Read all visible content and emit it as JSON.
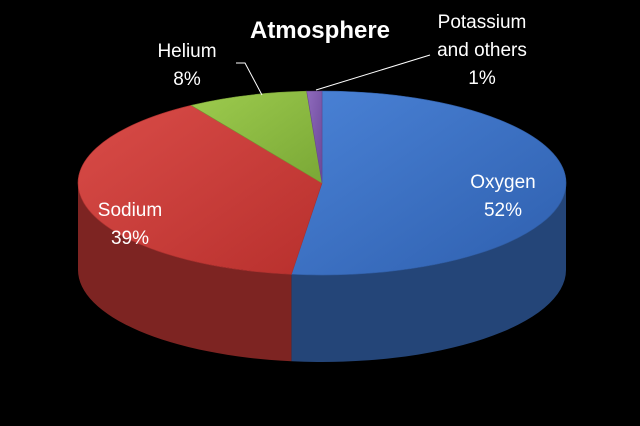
{
  "chart_data": {
    "type": "pie",
    "style": "3d",
    "title": "Atmosphere",
    "slices": [
      {
        "label": "Oxygen",
        "value": 52,
        "value_label": "52%",
        "color": "#3a6fc2"
      },
      {
        "label": "Sodium",
        "value": 39,
        "value_label": "39%",
        "color": "#c93a37"
      },
      {
        "label": "Helium",
        "value": 8,
        "value_label": "8%",
        "color": "#8bb840"
      },
      {
        "label": "Potassium and others",
        "label_lines": [
          "Potassium",
          "and others"
        ],
        "value": 1,
        "value_label": "1%",
        "color": "#7a55a8"
      }
    ],
    "legend": "none",
    "background": "#000000"
  }
}
